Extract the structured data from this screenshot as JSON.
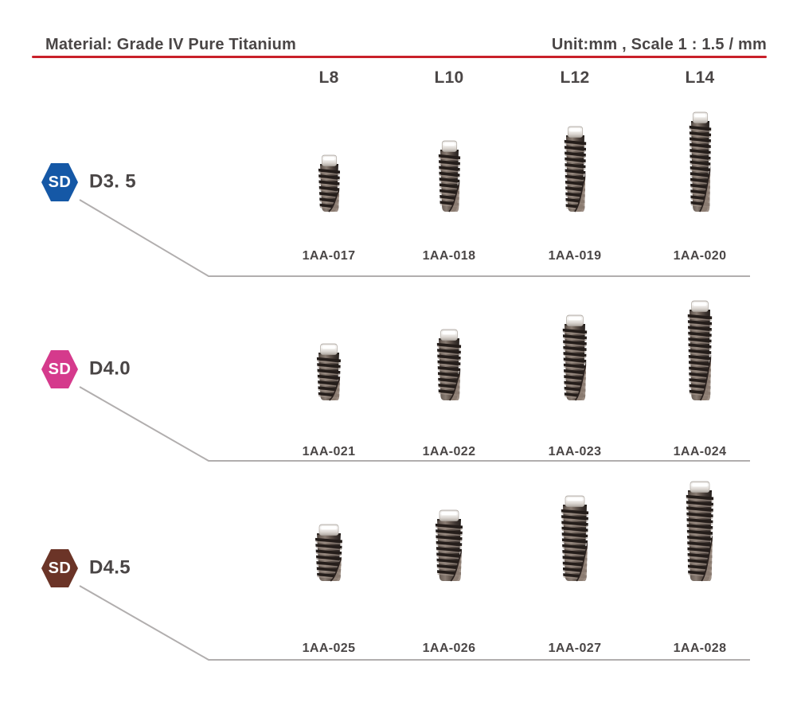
{
  "header": {
    "material_label": "Material: Grade IV Pure Titanium",
    "unit_label": "Unit:mm , Scale 1 : 1.5 / mm",
    "rule_color": "#c9202a"
  },
  "columns": [
    {
      "label": "L8",
      "length_mm": 8
    },
    {
      "label": "L10",
      "length_mm": 10
    },
    {
      "label": "L12",
      "length_mm": 12
    },
    {
      "label": "L14",
      "length_mm": 14
    }
  ],
  "rows": [
    {
      "badge_text": "SD",
      "badge_color": "#1558a6",
      "diameter_label": "D3. 5",
      "diameter_mm": 3.5,
      "items": [
        {
          "code": "1AA-017"
        },
        {
          "code": "1AA-018"
        },
        {
          "code": "1AA-019"
        },
        {
          "code": "1AA-020"
        }
      ]
    },
    {
      "badge_text": "SD",
      "badge_color": "#d53a8c",
      "diameter_label": "D4.0",
      "diameter_mm": 4.0,
      "items": [
        {
          "code": "1AA-021"
        },
        {
          "code": "1AA-022"
        },
        {
          "code": "1AA-023"
        },
        {
          "code": "1AA-024"
        }
      ]
    },
    {
      "badge_text": "SD",
      "badge_color": "#6b3427",
      "diameter_label": "D4.5",
      "diameter_mm": 4.5,
      "items": [
        {
          "code": "1AA-025"
        },
        {
          "code": "1AA-026"
        },
        {
          "code": "1AA-027"
        },
        {
          "code": "1AA-028"
        }
      ]
    }
  ],
  "line_color": "#b1aeae"
}
